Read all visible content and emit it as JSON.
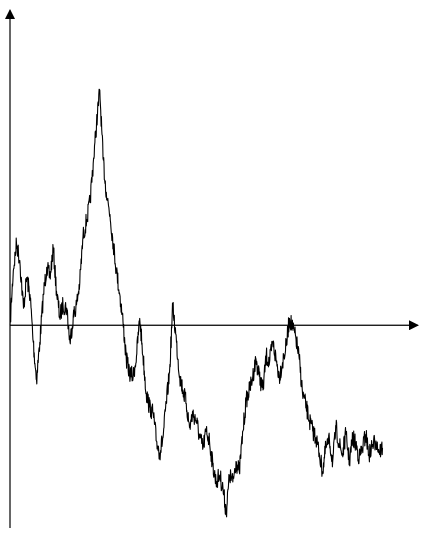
{
  "chart_data": {
    "type": "line",
    "title": "",
    "xlabel": "",
    "ylabel": "",
    "grid": false,
    "legend": "none",
    "line_color": "#000000",
    "axis_color": "#000000",
    "xlim": [
      0,
      1
    ],
    "ylim": [
      -1.19,
      1.85
    ],
    "series": [
      {
        "x": [
          0.0,
          0.008,
          0.016,
          0.024,
          0.033,
          0.041,
          0.049,
          0.057,
          0.065,
          0.073,
          0.082,
          0.09,
          0.098,
          0.106,
          0.114,
          0.122,
          0.13,
          0.139,
          0.147,
          0.155,
          0.163,
          0.171,
          0.179,
          0.188,
          0.196,
          0.204,
          0.212,
          0.22,
          0.228,
          0.236,
          0.245,
          0.253,
          0.261,
          0.269,
          0.277,
          0.285,
          0.293,
          0.302,
          0.31,
          0.318,
          0.326,
          0.334,
          0.342,
          0.351,
          0.359,
          0.367,
          0.375,
          0.383,
          0.391,
          0.399,
          0.408,
          0.416,
          0.424,
          0.432,
          0.44,
          0.448,
          0.457,
          0.465,
          0.473,
          0.481,
          0.489,
          0.497,
          0.505,
          0.514,
          0.522,
          0.53,
          0.538,
          0.546,
          0.554,
          0.562,
          0.571,
          0.579,
          0.587,
          0.595,
          0.603,
          0.611,
          0.62,
          0.628,
          0.636,
          0.644,
          0.652,
          0.66,
          0.668,
          0.677,
          0.685,
          0.693,
          0.701,
          0.709,
          0.717,
          0.726,
          0.734,
          0.742,
          0.75,
          0.758,
          0.766,
          0.774,
          0.783,
          0.791,
          0.799,
          0.807,
          0.815,
          0.823,
          0.832,
          0.84,
          0.848,
          0.856,
          0.864,
          0.872,
          0.88,
          0.889,
          0.897,
          0.905,
          0.913
        ],
        "y": [
          0.0,
          0.32,
          0.48,
          0.38,
          0.1,
          0.28,
          0.18,
          -0.1,
          -0.32,
          -0.1,
          0.18,
          0.34,
          0.28,
          0.45,
          0.2,
          0.05,
          0.12,
          0.1,
          -0.1,
          0.05,
          0.12,
          0.25,
          0.52,
          0.62,
          0.72,
          0.95,
          1.18,
          1.38,
          0.98,
          0.78,
          0.65,
          0.48,
          0.32,
          0.18,
          0.02,
          -0.2,
          -0.28,
          -0.3,
          -0.18,
          0.04,
          -0.18,
          -0.4,
          -0.48,
          -0.52,
          -0.68,
          -0.75,
          -0.66,
          -0.46,
          -0.28,
          0.12,
          -0.1,
          -0.3,
          -0.38,
          -0.46,
          -0.6,
          -0.52,
          -0.56,
          -0.66,
          -0.72,
          -0.62,
          -0.68,
          -0.82,
          -0.92,
          -0.88,
          -0.96,
          -1.1,
          -0.88,
          -0.92,
          -0.8,
          -0.86,
          -0.62,
          -0.44,
          -0.38,
          -0.3,
          -0.2,
          -0.3,
          -0.38,
          -0.18,
          -0.22,
          -0.1,
          -0.2,
          -0.3,
          -0.22,
          -0.12,
          0.04,
          -0.02,
          -0.08,
          -0.2,
          -0.4,
          -0.48,
          -0.56,
          -0.62,
          -0.66,
          -0.75,
          -0.86,
          -0.72,
          -0.68,
          -0.8,
          -0.6,
          -0.7,
          -0.76,
          -0.64,
          -0.8,
          -0.66,
          -0.7,
          -0.78,
          -0.72,
          -0.64,
          -0.76,
          -0.7,
          -0.68,
          -0.74,
          -0.72
        ]
      }
    ]
  }
}
